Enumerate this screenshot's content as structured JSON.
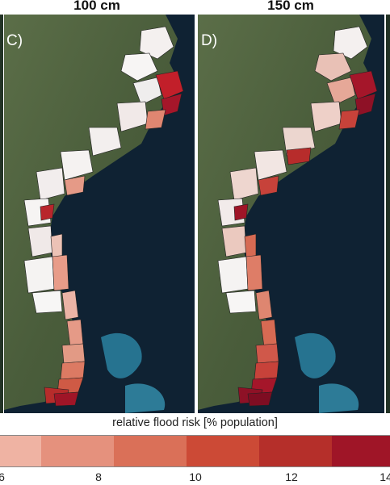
{
  "panels": [
    {
      "letter": "C)",
      "title": "100 cm"
    },
    {
      "letter": "D)",
      "title": "150 cm"
    }
  ],
  "legend": {
    "title": "relative flood risk [% population]",
    "ticks": [
      "6",
      "8",
      "10",
      "12",
      "14"
    ],
    "colors": [
      "#efb3a3",
      "#e5917d",
      "#da7058",
      "#cc4a36",
      "#b52f2a",
      "#9f1527"
    ]
  },
  "colors": {
    "ocean": "#0f2233",
    "land": "#4b5e3c",
    "reef": "#2f8fb0"
  }
}
